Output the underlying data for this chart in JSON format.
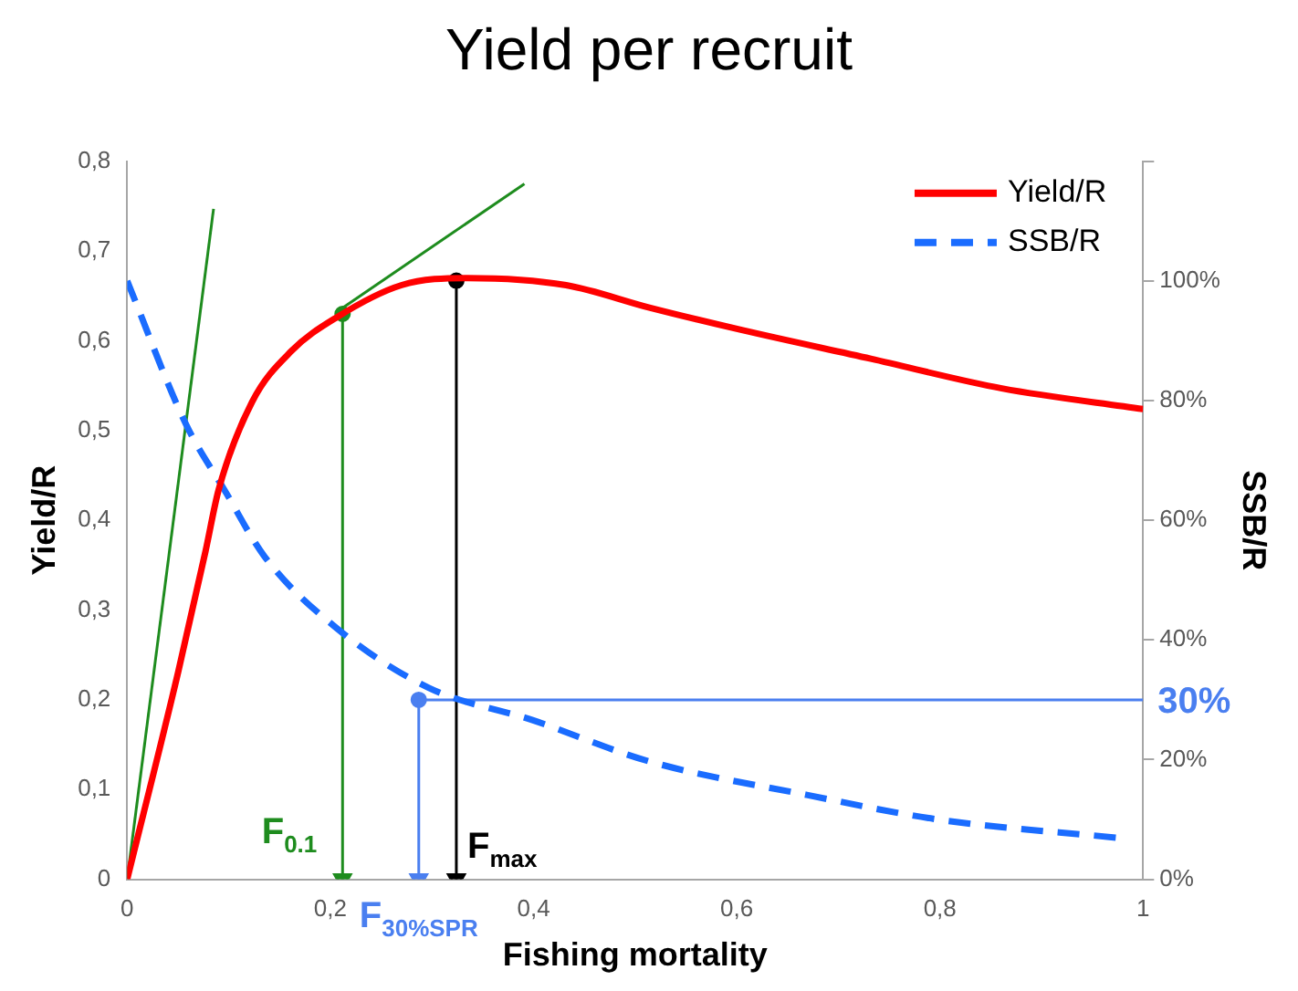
{
  "chart_data": {
    "type": "line",
    "title": "Yield per recruit",
    "xlabel": "Fishing mortality",
    "ylabel": "Yield/R",
    "y2label": "SSB/R",
    "xlim": [
      0,
      1
    ],
    "xticks": [
      0,
      {
        "value": 0.2,
        "label": "0,2"
      },
      {
        "value": 0.4,
        "label": "0,4"
      },
      {
        "value": 0.6,
        "label": "0,6"
      },
      {
        "value": 0.8,
        "label": "0,8"
      },
      1
    ],
    "ylim": [
      0,
      0.8
    ],
    "yticks": [
      0,
      {
        "value": 0.1,
        "label": "0,1"
      },
      {
        "value": 0.2,
        "label": "0,2"
      },
      {
        "value": 0.3,
        "label": "0,3"
      },
      {
        "value": 0.4,
        "label": "0,4"
      },
      {
        "value": 0.5,
        "label": "0,5"
      },
      {
        "value": 0.6,
        "label": "0,6"
      },
      {
        "value": 0.7,
        "label": "0,7"
      },
      {
        "value": 0.8,
        "label": "0,8"
      }
    ],
    "y2lim": [
      0,
      120
    ],
    "y2ticks": [
      {
        "value": 0,
        "label": "0%"
      },
      {
        "value": 20,
        "label": "20%"
      },
      {
        "value": 40,
        "label": "40%"
      },
      {
        "value": 60,
        "label": "60%"
      },
      {
        "value": 80,
        "label": "80%"
      },
      {
        "value": 100,
        "label": "100%"
      },
      {
        "value": 120,
        "label": null
      }
    ],
    "legend": "top right",
    "series": [
      {
        "name": "Yield/R",
        "type": "line",
        "color": "#ff0000",
        "marker": "none",
        "line_style": "solid",
        "x": [
          0,
          0.05,
          0.077,
          0.09,
          0.123,
          0.162,
          0.206,
          0.27,
          0.335,
          0.432,
          0.514,
          0.605,
          0.732,
          0.861,
          1
        ],
        "values": [
          0,
          0.23,
          0.365,
          0.434,
          0.532,
          0.589,
          0.626,
          0.662,
          0.67,
          0.662,
          0.637,
          0.612,
          0.58,
          0.547,
          0.524
        ]
      },
      {
        "name": "SSB/R",
        "type": "line",
        "axis": "y2",
        "color": "#1a6cff",
        "marker": "none",
        "line_style": "dashed",
        "x": [
          0,
          0.058,
          0.096,
          0.135,
          0.206,
          0.297,
          0.399,
          0.514,
          0.669,
          0.798,
          0.977
        ],
        "values": [
          100,
          76,
          65,
          54,
          42,
          32,
          26.6,
          19.7,
          14.1,
          10,
          6.9
        ]
      },
      {
        "type": "line",
        "color": "#1e8c1e",
        "marker": "none",
        "line_style": "solid",
        "x": [
          0,
          0.085
        ],
        "values": [
          0,
          0.747
        ]
      },
      {
        "type": "line",
        "color": "#1e8c1e",
        "marker": "none",
        "line_style": "solid",
        "x": [
          0.206,
          0.391
        ],
        "values": [
          0.632,
          0.775
        ]
      },
      {
        "type": "line",
        "color": "#1e8c1e",
        "marker": "triangle",
        "line_style": "solid",
        "x": [
          0.212,
          0.212
        ],
        "values": [
          0.63,
          0
        ]
      },
      {
        "type": "line",
        "color": "#000000",
        "marker": "triangle",
        "line_style": "solid",
        "x": [
          0.324,
          0.324
        ],
        "values": [
          0.667,
          0
        ]
      },
      {
        "type": "line",
        "axis": "y2",
        "color": "#4a7ff0",
        "marker": "triangle",
        "line_style": "solid",
        "x": [
          0.287,
          0.287
        ],
        "values": [
          30,
          0
        ]
      },
      {
        "type": "line",
        "axis": "y2",
        "color": "#4a7ff0",
        "marker": "none",
        "line_style": "solid",
        "x": [
          0.287,
          1
        ],
        "values": [
          30,
          30
        ]
      },
      {
        "type": "scatter",
        "color": "#1e8c1e",
        "marker": "circle",
        "x": [
          0.212
        ],
        "values": [
          0.63
        ]
      },
      {
        "type": "scatter",
        "color": "#000000",
        "marker": "circle",
        "x": [
          0.324
        ],
        "values": [
          0.667
        ]
      },
      {
        "type": "scatter",
        "axis": "y2",
        "color": "#4a7ff0",
        "marker": "circle",
        "x": [
          0.287
        ],
        "values": [
          30
        ]
      }
    ],
    "annotations": [
      {
        "text": "F$_{0.1}$",
        "x": 0.212,
        "y": 0
      },
      {
        "text": "F$_{max}$",
        "x": 0.324,
        "y": 0
      },
      {
        "text": "F$_{30%SPR}$",
        "x": 0.287,
        "y": 0
      },
      {
        "text": "30%",
        "x": 1,
        "y": 0.2
      }
    ]
  }
}
